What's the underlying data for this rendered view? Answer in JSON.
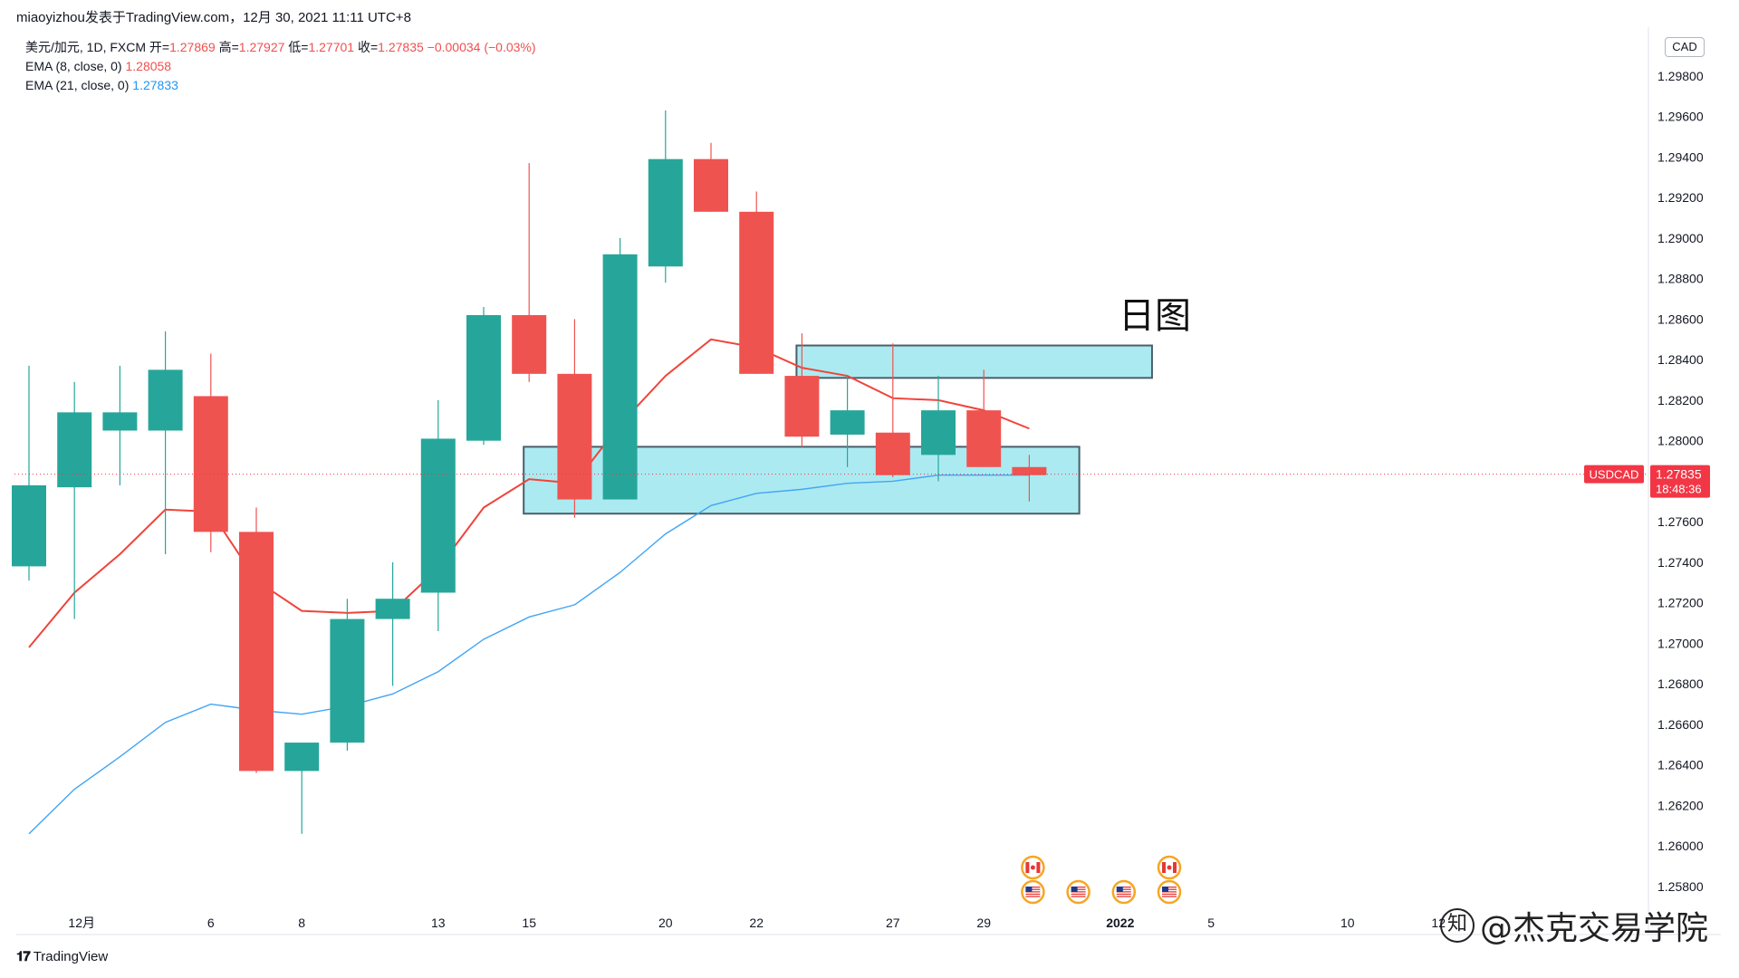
{
  "caption": "miaoyizhou发表于TradingView.com，12月 30, 2021 11:11 UTC+8",
  "legend": {
    "symbol_line": {
      "symbol": "美元/加元, 1D, FXCM",
      "open_label": "开=",
      "open": "1.27869",
      "high_label": "高=",
      "high": "1.27927",
      "low_label": "低=",
      "low": "1.27701",
      "close_label": "收=",
      "close": "1.27835",
      "change": "−0.00034 (−0.03%)"
    },
    "ema8": {
      "label": "EMA (8, close, 0)",
      "value": "1.28058"
    },
    "ema21": {
      "label": "EMA (21, close, 0)",
      "value": "1.27833"
    }
  },
  "currency": "CAD",
  "annotation_text": "日图",
  "price_tag": {
    "symbol": "USDCAD",
    "price": "1.27835",
    "countdown": "18:48:36"
  },
  "footer": {
    "logo": "TradingView"
  },
  "brand_watermark": {
    "symbol": "知",
    "text": "@杰克交易学院"
  },
  "colors": {
    "up": "#26a69a",
    "down": "#ef5350",
    "ema8": "#f0443a",
    "ema21": "#42a5f5",
    "zone_fill": "#9ee6ee",
    "zone_stroke": "#4a5f6b",
    "price_tag": "#f23645"
  },
  "chart_data": {
    "type": "candlestick",
    "x_ticks": [
      "12月",
      "6",
      "8",
      "13",
      "15",
      "20",
      "22",
      "27",
      "29",
      "2022",
      "5",
      "10",
      "12"
    ],
    "y_ticks": [
      "1.29800",
      "1.29600",
      "1.29400",
      "1.29200",
      "1.29000",
      "1.28800",
      "1.28600",
      "1.28400",
      "1.28200",
      "1.28000",
      "1.27600",
      "1.27400",
      "1.27200",
      "1.27000",
      "1.26800",
      "1.26600",
      "1.26400",
      "1.26200",
      "1.26000",
      "1.25800"
    ],
    "ylim": [
      1.2567,
      1.3005
    ],
    "last_price": 1.27835,
    "candles": [
      {
        "open": 1.2738,
        "high": 1.2837,
        "low": 1.2731,
        "close": 1.2778
      },
      {
        "open": 1.2777,
        "high": 1.2829,
        "low": 1.2712,
        "close": 1.2814
      },
      {
        "open": 1.2805,
        "high": 1.2837,
        "low": 1.2778,
        "close": 1.2814
      },
      {
        "open": 1.2805,
        "high": 1.2854,
        "low": 1.2744,
        "close": 1.2835
      },
      {
        "open": 1.2822,
        "high": 1.2843,
        "low": 1.2745,
        "close": 1.2755
      },
      {
        "open": 1.2755,
        "high": 1.2767,
        "low": 1.2636,
        "close": 1.2637
      },
      {
        "open": 1.2637,
        "high": 1.2651,
        "low": 1.2606,
        "close": 1.2651
      },
      {
        "open": 1.2651,
        "high": 1.2722,
        "low": 1.2647,
        "close": 1.2712
      },
      {
        "open": 1.2712,
        "high": 1.274,
        "low": 1.2679,
        "close": 1.2722
      },
      {
        "open": 1.2725,
        "high": 1.282,
        "low": 1.2706,
        "close": 1.2801
      },
      {
        "open": 1.28,
        "high": 1.2866,
        "low": 1.2798,
        "close": 1.2862
      },
      {
        "open": 1.2862,
        "high": 1.2937,
        "low": 1.2829,
        "close": 1.2833
      },
      {
        "open": 1.2833,
        "high": 1.286,
        "low": 1.2762,
        "close": 1.2771
      },
      {
        "open": 1.2771,
        "high": 1.29,
        "low": 1.2771,
        "close": 1.2892
      },
      {
        "open": 1.2886,
        "high": 1.2963,
        "low": 1.2878,
        "close": 1.2939
      },
      {
        "open": 1.2939,
        "high": 1.2947,
        "low": 1.2913,
        "close": 1.2913
      },
      {
        "open": 1.2913,
        "high": 1.2923,
        "low": 1.2833,
        "close": 1.2833
      },
      {
        "open": 1.2832,
        "high": 1.2853,
        "low": 1.2797,
        "close": 1.2802
      },
      {
        "open": 1.2803,
        "high": 1.2832,
        "low": 1.2787,
        "close": 1.2815
      },
      {
        "open": 1.2804,
        "high": 1.2848,
        "low": 1.2782,
        "close": 1.2783
      },
      {
        "open": 1.2793,
        "high": 1.2832,
        "low": 1.278,
        "close": 1.2815
      },
      {
        "open": 1.2815,
        "high": 1.2835,
        "low": 1.2787,
        "close": 1.2787
      },
      {
        "open": 1.2787,
        "high": 1.2793,
        "low": 1.277,
        "close": 1.2783
      }
    ],
    "series": [
      {
        "name": "EMA (8, close, 0)",
        "values": [
          1.2698,
          1.2725,
          1.2744,
          1.2766,
          1.2765,
          1.2731,
          1.2716,
          1.2715,
          1.2716,
          1.2737,
          1.2767,
          1.2781,
          1.2779,
          1.2808,
          1.2832,
          1.285,
          1.2846,
          1.2836,
          1.2832,
          1.2821,
          1.282,
          1.2815,
          1.2806
        ]
      },
      {
        "name": "EMA (21, close, 0)",
        "values": [
          1.2606,
          1.2628,
          1.2644,
          1.2661,
          1.267,
          1.2667,
          1.2665,
          1.2669,
          1.2675,
          1.2686,
          1.2702,
          1.2713,
          1.2719,
          1.2735,
          1.2754,
          1.2768,
          1.2774,
          1.2776,
          1.2779,
          1.278,
          1.2783,
          1.2783,
          1.2783
        ]
      }
    ],
    "zones": [
      {
        "from_index": 17,
        "to_index": 24.7,
        "top": 1.2847,
        "bottom": 1.2831
      },
      {
        "from_index": 11,
        "to_index": 23.1,
        "top": 1.2797,
        "bottom": 1.2764
      }
    ],
    "event_icons": [
      {
        "index": 22,
        "flags": [
          "canada",
          "usa"
        ]
      },
      {
        "index": 23,
        "flags": [
          "usa"
        ]
      },
      {
        "index": 24,
        "flags": [
          "usa"
        ]
      },
      {
        "index": 25,
        "flags": [
          "canada",
          "usa"
        ]
      }
    ]
  }
}
